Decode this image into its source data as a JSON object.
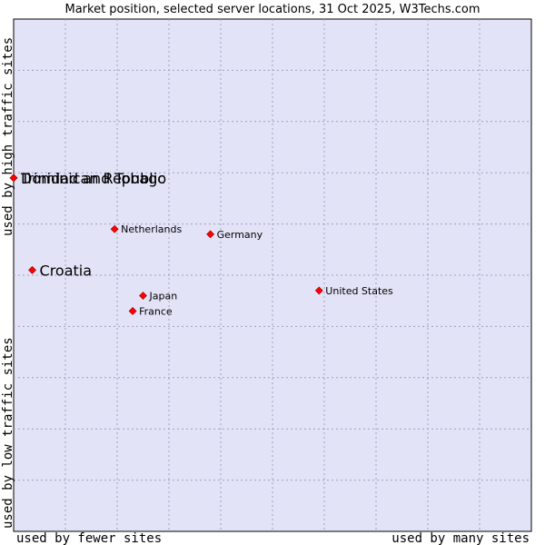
{
  "chart_data": {
    "type": "scatter",
    "title": "Market position, selected server locations, 31 Oct 2025, W3Techs.com",
    "xlabel_left": "used by fewer sites",
    "xlabel_right": "used by many sites",
    "ylabel_bottom": "used by low traffic sites",
    "ylabel_top": "used by high traffic sites",
    "xlim": [
      0,
      10
    ],
    "ylim": [
      0,
      10
    ],
    "grid": true,
    "marker_color": "#ff0000",
    "plot_background": "#e3e3f7",
    "points": [
      {
        "label": "Trinidad and Tobago",
        "x": 0.0,
        "y": 6.9,
        "label_size": "large"
      },
      {
        "label": "Dominican Republic",
        "x": 0.0,
        "y": 6.9,
        "label_size": "large"
      },
      {
        "label": "Croatia",
        "x": 0.36,
        "y": 5.1,
        "label_size": "large"
      },
      {
        "label": "Netherlands",
        "x": 1.95,
        "y": 5.9,
        "label_size": "small"
      },
      {
        "label": "Germany",
        "x": 3.8,
        "y": 5.8,
        "label_size": "small"
      },
      {
        "label": "United States",
        "x": 5.9,
        "y": 4.7,
        "label_size": "small"
      },
      {
        "label": "Japan",
        "x": 2.5,
        "y": 4.6,
        "label_size": "small"
      },
      {
        "label": "France",
        "x": 2.3,
        "y": 4.3,
        "label_size": "small"
      }
    ]
  }
}
